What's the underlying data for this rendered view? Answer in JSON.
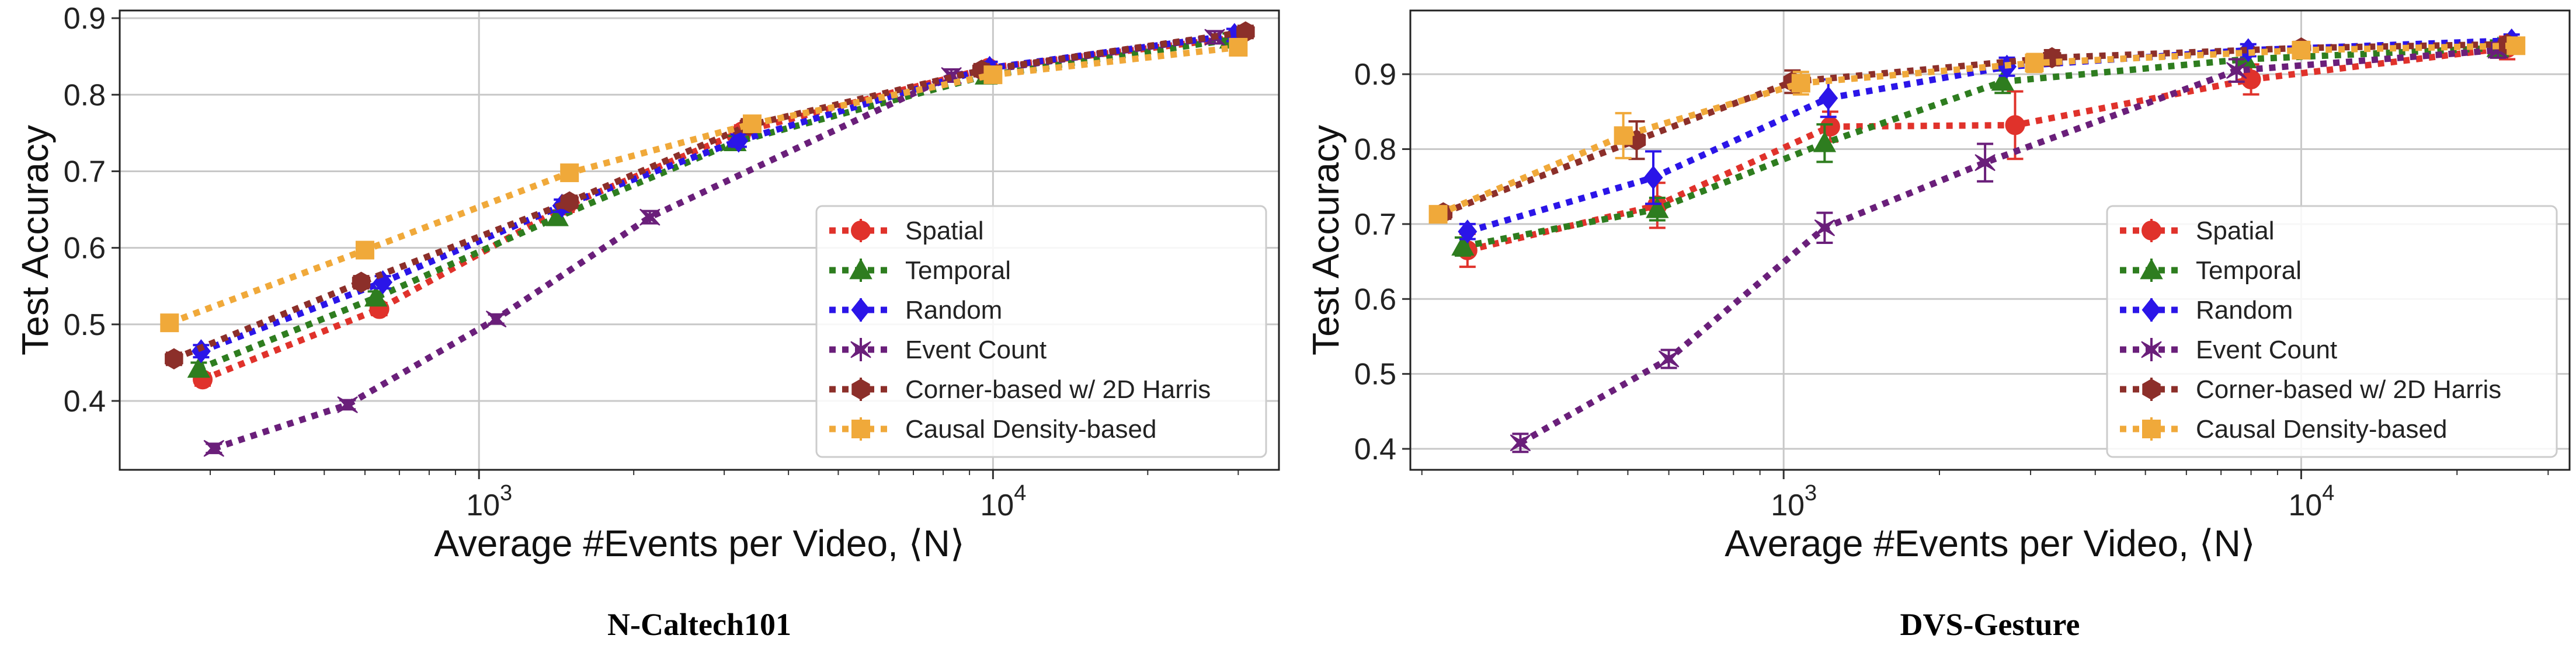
{
  "chart_data": [
    {
      "type": "line",
      "caption": "N-Caltech101",
      "xlabel": "Average #Events per Video, ⟨N⟩",
      "ylabel": "Test Accuracy",
      "xscale": "log",
      "xlim": [
        200,
        36000
      ],
      "ylim": [
        0.31,
        0.91
      ],
      "xticks": [
        {
          "value": 1000,
          "base": "10",
          "exp": "3"
        },
        {
          "value": 10000,
          "base": "10",
          "exp": "4"
        }
      ],
      "yticks": [
        0.4,
        0.5,
        0.6,
        0.7,
        0.8,
        0.9
      ],
      "grid": true,
      "legend_position": "lower-right",
      "series": [
        {
          "name": "Spatial",
          "color": "#e0322b",
          "marker": "circle",
          "points": [
            [
              290,
              0.428,
              0.008
            ],
            [
              640,
              0.52,
              0.008
            ],
            [
              1480,
              0.655,
              0.008
            ],
            [
              3250,
              0.752,
              0.008
            ],
            [
              9800,
              0.835,
              0.008
            ],
            [
              30000,
              0.875,
              0.008
            ]
          ]
        },
        {
          "name": "Temporal",
          "color": "#2e7d1f",
          "marker": "triangle",
          "points": [
            [
              285,
              0.442,
              0.008
            ],
            [
              630,
              0.535,
              0.008
            ],
            [
              1420,
              0.64,
              0.008
            ],
            [
              3150,
              0.738,
              0.008
            ],
            [
              9700,
              0.825,
              0.008
            ],
            [
              29000,
              0.872,
              0.008
            ]
          ]
        },
        {
          "name": "Random",
          "color": "#2b15e8",
          "marker": "diamond",
          "points": [
            [
              288,
              0.465,
              0.008
            ],
            [
              650,
              0.555,
              0.008
            ],
            [
              1450,
              0.655,
              0.008
            ],
            [
              3200,
              0.74,
              0.008
            ],
            [
              9850,
              0.835,
              0.008
            ],
            [
              29500,
              0.878,
              0.008
            ]
          ]
        },
        {
          "name": "Event Count",
          "color": "#6a1f7a",
          "marker": "star",
          "points": [
            [
              305,
              0.338,
              0.006
            ],
            [
              555,
              0.395,
              0.006
            ],
            [
              1080,
              0.507,
              0.006
            ],
            [
              2150,
              0.64,
              0.008
            ],
            [
              8300,
              0.825,
              0.008
            ],
            [
              27000,
              0.875,
              0.008
            ]
          ]
        },
        {
          "name": "Corner-based w/ 2D Harris",
          "color": "#8c2f2a",
          "marker": "hexagon",
          "points": [
            [
              255,
              0.455,
              0.008
            ],
            [
              590,
              0.555,
              0.008
            ],
            [
              1500,
              0.66,
              0.008
            ],
            [
              3350,
              0.76,
              0.008
            ],
            [
              9500,
              0.832,
              0.008
            ],
            [
              31000,
              0.882,
              0.008
            ]
          ]
        },
        {
          "name": "Causal Density-based",
          "color": "#f0a93a",
          "marker": "square",
          "points": [
            [
              250,
              0.502,
              0.008
            ],
            [
              600,
              0.597,
              0.008
            ],
            [
              1500,
              0.698,
              0.008
            ],
            [
              3400,
              0.762,
              0.008
            ],
            [
              10000,
              0.826,
              0.008
            ],
            [
              30000,
              0.862,
              0.008
            ]
          ]
        }
      ]
    },
    {
      "type": "line",
      "caption": "DVS-Gesture",
      "xlabel": "Average #Events per Video, ⟨N⟩",
      "ylabel": "Test Accuracy",
      "xscale": "log",
      "xlim": [
        190,
        33000
      ],
      "ylim": [
        0.372,
        0.985
      ],
      "xticks": [
        {
          "value": 1000,
          "base": "10",
          "exp": "3"
        },
        {
          "value": 10000,
          "base": "10",
          "exp": "4"
        }
      ],
      "yticks": [
        0.4,
        0.5,
        0.6,
        0.7,
        0.8,
        0.9
      ],
      "grid": true,
      "legend_position": "lower-right",
      "series": [
        {
          "name": "Spatial",
          "color": "#e0322b",
          "marker": "circle",
          "points": [
            [
              245,
              0.665,
              0.022
            ],
            [
              570,
              0.725,
              0.03
            ],
            [
              1230,
              0.83,
              0.02
            ],
            [
              2800,
              0.832,
              0.045
            ],
            [
              8000,
              0.893,
              0.02
            ],
            [
              25000,
              0.935,
              0.015
            ]
          ]
        },
        {
          "name": "Temporal",
          "color": "#2e7d1f",
          "marker": "triangle",
          "points": [
            [
              240,
              0.67,
              0.012
            ],
            [
              570,
              0.72,
              0.015
            ],
            [
              1200,
              0.808,
              0.025
            ],
            [
              2650,
              0.89,
              0.015
            ],
            [
              7800,
              0.92,
              0.01
            ],
            [
              24000,
              0.935,
              0.01
            ]
          ]
        },
        {
          "name": "Random",
          "color": "#2b15e8",
          "marker": "diamond",
          "points": [
            [
              245,
              0.69,
              0.01
            ],
            [
              560,
              0.762,
              0.035
            ],
            [
              1220,
              0.868,
              0.025
            ],
            [
              2700,
              0.91,
              0.012
            ],
            [
              7900,
              0.932,
              0.008
            ],
            [
              25500,
              0.945,
              0.008
            ]
          ]
        },
        {
          "name": "Event Count",
          "color": "#6a1f7a",
          "marker": "star",
          "points": [
            [
              310,
              0.408,
              0.012
            ],
            [
              600,
              0.52,
              0.012
            ],
            [
              1200,
              0.695,
              0.02
            ],
            [
              2450,
              0.782,
              0.025
            ],
            [
              7500,
              0.905,
              0.015
            ],
            [
              24000,
              0.932,
              0.01
            ]
          ]
        },
        {
          "name": "Corner-based w/ 2D Harris",
          "color": "#8c2f2a",
          "marker": "hexagon",
          "points": [
            [
              220,
              0.715,
              0.008
            ],
            [
              520,
              0.812,
              0.025
            ],
            [
              1040,
              0.89,
              0.015
            ],
            [
              3300,
              0.922,
              0.01
            ],
            [
              10000,
              0.935,
              0.008
            ],
            [
              25000,
              0.94,
              0.008
            ]
          ]
        },
        {
          "name": "Causal Density-based",
          "color": "#f0a93a",
          "marker": "square",
          "points": [
            [
              215,
              0.713,
              0.008
            ],
            [
              490,
              0.818,
              0.03
            ],
            [
              1080,
              0.888,
              0.015
            ],
            [
              3050,
              0.915,
              0.012
            ],
            [
              10000,
              0.932,
              0.008
            ],
            [
              26000,
              0.938,
              0.008
            ]
          ]
        }
      ]
    }
  ]
}
